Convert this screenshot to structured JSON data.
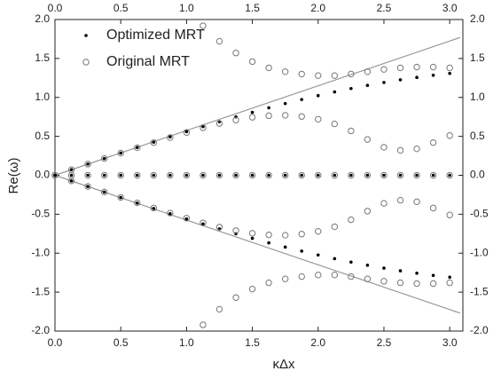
{
  "chart_data": {
    "type": "scatter",
    "xlabel": "κΔx",
    "ylabel": "Re(ω)",
    "xlim": [
      0,
      3.1
    ],
    "ylim": [
      -2.0,
      2.0
    ],
    "xticks": [
      {
        "value": 0,
        "label": "0.0"
      },
      0.5,
      {
        "value": 1,
        "label": "1.0"
      },
      1.5,
      {
        "value": 2,
        "label": "2.0"
      },
      2.5,
      {
        "value": 3,
        "label": "3.0"
      }
    ],
    "yticks": [
      {
        "value": -2,
        "label": "-2.0"
      },
      -1.5,
      {
        "value": -1,
        "label": "-1.0"
      },
      -0.5,
      {
        "value": 0,
        "label": "0.0"
      },
      0.5,
      {
        "value": 1,
        "label": "1.0"
      },
      1.5,
      {
        "value": 2,
        "label": "2.0"
      }
    ],
    "legend": "upper left",
    "x": [
      0,
      0.125,
      0.25,
      0.375,
      0.5,
      0.625,
      0.75,
      0.875,
      1.0,
      1.125,
      1.25,
      1.375,
      1.5,
      1.625,
      1.75,
      1.875,
      2.0,
      2.125,
      2.25,
      2.375,
      2.5,
      2.625,
      2.75,
      2.875,
      3.0
    ],
    "series": [
      {
        "name": "Optimized MRT",
        "marker": "dot",
        "color": "#000000",
        "values": [
          [
            0,
            0.072,
            0.144,
            0.215,
            0.286,
            0.357,
            0.426,
            0.494,
            0.56,
            0.625,
            0.689,
            0.75,
            0.809,
            0.867,
            0.921,
            0.973,
            1.023,
            1.07,
            1.114,
            1.154,
            1.192,
            1.226,
            1.257,
            1.285,
            1.308
          ],
          [
            0,
            0,
            0,
            0,
            0,
            0,
            0,
            0,
            0,
            0,
            0,
            0,
            0,
            0,
            0,
            0,
            0,
            0,
            0,
            0,
            0,
            0,
            0,
            0,
            0
          ],
          [
            0,
            -0.072,
            -0.144,
            -0.215,
            -0.286,
            -0.357,
            -0.426,
            -0.494,
            -0.56,
            -0.625,
            -0.689,
            -0.75,
            -0.809,
            -0.867,
            -0.921,
            -0.973,
            -1.023,
            -1.07,
            -1.114,
            -1.154,
            -1.192,
            -1.226,
            -1.257,
            -1.285,
            -1.308
          ]
        ]
      },
      {
        "name": "Original MRT",
        "marker": "circle",
        "color": "#777777",
        "values": [
          [
            null,
            null,
            null,
            null,
            null,
            null,
            null,
            null,
            null,
            1.92,
            1.72,
            1.57,
            1.46,
            1.38,
            1.33,
            1.3,
            1.28,
            1.28,
            1.3,
            1.33,
            1.36,
            1.38,
            1.39,
            1.39,
            1.38
          ],
          [
            0,
            0.072,
            0.144,
            0.215,
            0.285,
            0.354,
            0.42,
            0.485,
            0.55,
            0.61,
            0.665,
            0.71,
            0.745,
            0.765,
            0.77,
            0.755,
            0.72,
            0.66,
            0.57,
            0.46,
            0.36,
            0.32,
            0.34,
            0.42,
            0.51
          ],
          [
            0,
            0,
            0,
            0,
            0,
            0,
            0,
            0,
            0,
            0,
            0,
            0,
            0,
            0,
            0,
            0,
            0,
            0,
            0,
            0,
            0,
            0,
            0,
            0,
            0
          ],
          [
            0,
            -0.072,
            -0.144,
            -0.215,
            -0.285,
            -0.354,
            -0.42,
            -0.485,
            -0.55,
            -0.61,
            -0.665,
            -0.71,
            -0.745,
            -0.765,
            -0.77,
            -0.755,
            -0.72,
            -0.66,
            -0.57,
            -0.46,
            -0.36,
            -0.32,
            -0.34,
            -0.42,
            -0.51
          ],
          [
            null,
            null,
            null,
            null,
            null,
            null,
            null,
            null,
            null,
            -1.92,
            -1.72,
            -1.57,
            -1.46,
            -1.38,
            -1.33,
            -1.3,
            -1.28,
            -1.28,
            -1.3,
            -1.33,
            -1.36,
            -1.38,
            -1.39,
            -1.39,
            -1.38
          ]
        ]
      }
    ],
    "reference_lines": {
      "color": "#999999",
      "x": [
        0,
        3.08
      ],
      "values": [
        [
          0,
          1.77
        ],
        [
          0,
          -1.77
        ]
      ]
    }
  }
}
